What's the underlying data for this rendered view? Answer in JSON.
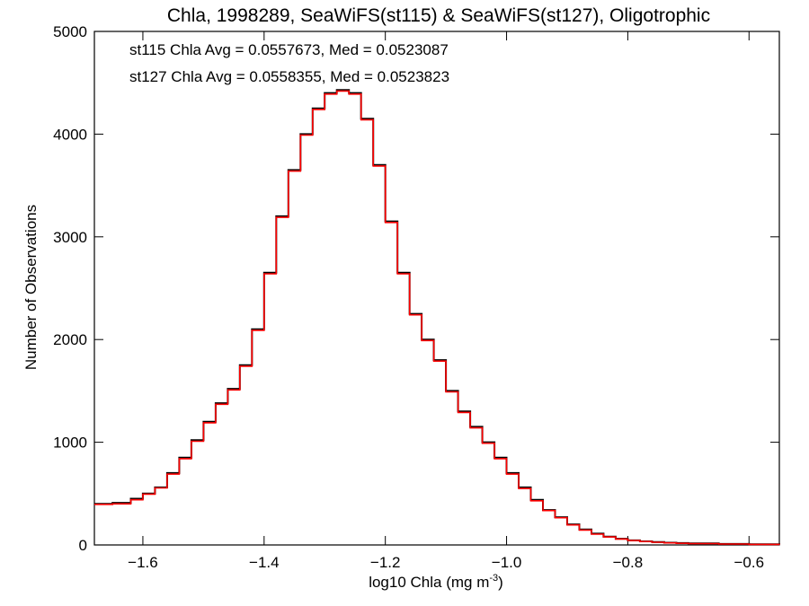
{
  "chart_data": {
    "type": "line",
    "title": "Chla, 1998289, SeaWiFS(st115) & SeaWiFS(st127), Oligotrophic",
    "xlabel": "log10 Chla (mg m",
    "xlabel_sup": "-3",
    "xlabel_close": ")",
    "ylabel": "Number of Observations",
    "xlim": [
      -1.68,
      -0.55
    ],
    "ylim": [
      0,
      5000
    ],
    "x_ticks": [
      -1.6,
      -1.4,
      -1.2,
      -1.0,
      -0.8,
      -0.6
    ],
    "x_tick_labels": [
      "−1.6",
      "−1.4",
      "−1.2",
      "−1.0",
      "−0.8",
      "−0.6"
    ],
    "y_ticks": [
      0,
      1000,
      2000,
      3000,
      4000,
      5000
    ],
    "y_tick_labels": [
      "0",
      "1000",
      "2000",
      "3000",
      "4000",
      "5000"
    ],
    "annotations": [
      {
        "text": "st115 Chla Avg = 0.0557673, Med = 0.0523087",
        "color": "#000000"
      },
      {
        "text": "st127 Chla Avg = 0.0558355, Med = 0.0523823",
        "color": "#ff0000"
      }
    ],
    "series": [
      {
        "color": "#000000",
        "x": [
          -1.68,
          -1.65,
          -1.62,
          -1.6,
          -1.58,
          -1.56,
          -1.54,
          -1.52,
          -1.5,
          -1.48,
          -1.46,
          -1.44,
          -1.42,
          -1.4,
          -1.38,
          -1.36,
          -1.34,
          -1.32,
          -1.3,
          -1.28,
          -1.26,
          -1.24,
          -1.22,
          -1.2,
          -1.18,
          -1.16,
          -1.14,
          -1.12,
          -1.1,
          -1.08,
          -1.06,
          -1.04,
          -1.02,
          -1.0,
          -0.98,
          -0.96,
          -0.94,
          -0.92,
          -0.9,
          -0.88,
          -0.86,
          -0.84,
          -0.82,
          -0.8,
          -0.78,
          -0.76,
          -0.74,
          -0.72,
          -0.7,
          -0.65,
          -0.6,
          -0.55
        ],
        "y": [
          400,
          410,
          450,
          500,
          560,
          700,
          850,
          1020,
          1200,
          1380,
          1520,
          1750,
          2100,
          2650,
          3200,
          3650,
          4000,
          4250,
          4400,
          4430,
          4400,
          4150,
          3700,
          3150,
          2650,
          2250,
          2000,
          1800,
          1500,
          1300,
          1150,
          1000,
          850,
          700,
          560,
          440,
          340,
          270,
          200,
          150,
          110,
          80,
          60,
          45,
          35,
          28,
          22,
          18,
          15,
          10,
          6,
          4
        ]
      },
      {
        "color": "#ff0000",
        "x": [
          -1.68,
          -1.65,
          -1.62,
          -1.6,
          -1.58,
          -1.56,
          -1.54,
          -1.52,
          -1.5,
          -1.48,
          -1.46,
          -1.44,
          -1.42,
          -1.4,
          -1.38,
          -1.36,
          -1.34,
          -1.32,
          -1.3,
          -1.28,
          -1.26,
          -1.24,
          -1.22,
          -1.2,
          -1.18,
          -1.16,
          -1.14,
          -1.12,
          -1.1,
          -1.08,
          -1.06,
          -1.04,
          -1.02,
          -1.0,
          -0.98,
          -0.96,
          -0.94,
          -0.92,
          -0.9,
          -0.88,
          -0.86,
          -0.84,
          -0.82,
          -0.8,
          -0.78,
          -0.76,
          -0.74,
          -0.72,
          -0.7,
          -0.65,
          -0.6,
          -0.55
        ],
        "y": [
          395,
          400,
          440,
          495,
          555,
          690,
          840,
          1010,
          1190,
          1370,
          1510,
          1740,
          2090,
          2640,
          3190,
          3640,
          3990,
          4240,
          4390,
          4420,
          4390,
          4140,
          3690,
          3140,
          2640,
          2240,
          1990,
          1790,
          1490,
          1290,
          1140,
          990,
          840,
          690,
          550,
          430,
          335,
          265,
          195,
          145,
          105,
          78,
          58,
          43,
          33,
          26,
          20,
          16,
          13,
          9,
          5,
          3
        ]
      }
    ]
  }
}
